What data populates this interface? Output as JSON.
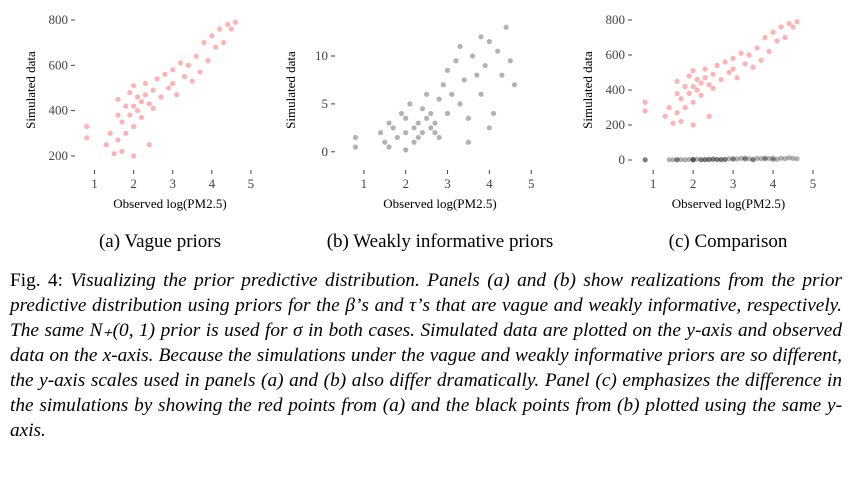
{
  "chart_data": [
    {
      "type": "scatter",
      "subcaption": "(a) Vague priors",
      "x_label": "Observed log(PM2.5)",
      "y_label": "Simulated data",
      "xlim": [
        0.5,
        5.36
      ],
      "ylim": [
        138,
        844
      ],
      "xticks": [
        1,
        2,
        3,
        4,
        5
      ],
      "yticks": [
        200,
        400,
        600,
        800
      ],
      "series": [
        {
          "color": "#ff0000",
          "x": [
            0.8,
            0.8,
            1.3,
            1.4,
            1.5,
            1.6,
            1.6,
            1.6,
            1.7,
            1.7,
            1.8,
            1.8,
            1.9,
            1.9,
            2.0,
            2.0,
            2.0,
            2.1,
            2.1,
            2.2,
            2.2,
            2.3,
            2.3,
            2.4,
            2.5,
            2.5,
            2.6,
            2.7,
            2.8,
            2.9,
            3.0,
            3.0,
            3.1,
            3.2,
            3.3,
            3.4,
            3.5,
            3.6,
            3.7,
            3.8,
            3.9,
            4.0,
            4.1,
            4.2,
            4.3,
            4.4,
            4.5,
            4.6,
            2.4,
            2.0
          ],
          "values": [
            330,
            280,
            250,
            300,
            210,
            270,
            380,
            450,
            220,
            350,
            300,
            420,
            380,
            480,
            330,
            420,
            510,
            400,
            460,
            370,
            440,
            470,
            520,
            430,
            490,
            410,
            540,
            460,
            560,
            500,
            520,
            580,
            470,
            610,
            550,
            600,
            530,
            640,
            570,
            700,
            620,
            730,
            680,
            760,
            700,
            780,
            760,
            790,
            250,
            200
          ]
        }
      ]
    },
    {
      "type": "scatter",
      "subcaption": "(b) Weakly informative priors",
      "x_label": "Observed log(PM2.5)",
      "y_label": "Simulated data",
      "xlim": [
        0.31,
        5.33
      ],
      "ylim": [
        -1.9,
        14.8
      ],
      "xticks": [
        1,
        2,
        3,
        4,
        5
      ],
      "yticks": [
        0,
        5,
        10
      ],
      "series": [
        {
          "color": "#000000",
          "x": [
            0.8,
            0.8,
            1.4,
            1.5,
            1.6,
            1.7,
            1.8,
            1.9,
            2.0,
            2.0,
            2.1,
            2.2,
            2.2,
            2.3,
            2.4,
            2.4,
            2.5,
            2.5,
            2.6,
            2.6,
            2.7,
            2.8,
            2.8,
            2.9,
            3.0,
            3.0,
            3.1,
            3.2,
            3.3,
            3.3,
            3.4,
            3.5,
            3.6,
            3.7,
            3.8,
            3.8,
            3.9,
            4.0,
            4.1,
            4.2,
            4.3,
            4.4,
            4.5,
            4.6,
            1.6,
            2.0,
            2.3,
            2.7,
            3.5,
            4.0
          ],
          "values": [
            1.5,
            0.5,
            2.0,
            1.0,
            3.0,
            2.5,
            1.5,
            4.0,
            2.0,
            3.5,
            5.0,
            2.5,
            1.0,
            3.0,
            4.5,
            2.0,
            3.5,
            6.0,
            2.5,
            4.0,
            3.0,
            5.5,
            1.5,
            7.0,
            4.0,
            8.5,
            6.0,
            9.5,
            5.0,
            11.0,
            7.5,
            3.5,
            10.0,
            8.0,
            12.0,
            6.0,
            9.0,
            11.5,
            4.0,
            10.5,
            8.0,
            13.0,
            9.5,
            7.0,
            0.5,
            0.2,
            1.5,
            2.0,
            1.0,
            2.5
          ]
        }
      ]
    },
    {
      "type": "scatter",
      "subcaption": "(c) Comparison",
      "x_label": "Observed log(PM2.5)",
      "y_label": "Simulated data",
      "xlim": [
        0.47,
        5.3
      ],
      "ylim": [
        -57,
        857
      ],
      "xticks": [
        1,
        2,
        3,
        4,
        5
      ],
      "yticks": [
        0,
        200,
        400,
        600,
        800
      ],
      "series": [
        {
          "color": "#ff0000",
          "x": [
            0.8,
            0.8,
            1.3,
            1.4,
            1.5,
            1.6,
            1.6,
            1.6,
            1.7,
            1.7,
            1.8,
            1.8,
            1.9,
            1.9,
            2.0,
            2.0,
            2.0,
            2.1,
            2.1,
            2.2,
            2.2,
            2.3,
            2.3,
            2.4,
            2.5,
            2.5,
            2.6,
            2.7,
            2.8,
            2.9,
            3.0,
            3.0,
            3.1,
            3.2,
            3.3,
            3.4,
            3.5,
            3.6,
            3.7,
            3.8,
            3.9,
            4.0,
            4.1,
            4.2,
            4.3,
            4.4,
            4.5,
            4.6,
            2.4,
            2.0
          ],
          "values": [
            330,
            280,
            250,
            300,
            210,
            270,
            380,
            450,
            220,
            350,
            300,
            420,
            380,
            480,
            330,
            420,
            510,
            400,
            460,
            370,
            440,
            470,
            520,
            430,
            490,
            410,
            540,
            460,
            560,
            500,
            520,
            580,
            470,
            610,
            550,
            600,
            530,
            640,
            570,
            700,
            620,
            730,
            680,
            760,
            700,
            780,
            760,
            790,
            250,
            200
          ]
        },
        {
          "color": "#000000",
          "x": [
            0.8,
            0.8,
            1.4,
            1.5,
            1.6,
            1.7,
            1.8,
            1.9,
            2.0,
            2.0,
            2.1,
            2.2,
            2.2,
            2.3,
            2.4,
            2.4,
            2.5,
            2.5,
            2.6,
            2.6,
            2.7,
            2.8,
            2.8,
            2.9,
            3.0,
            3.0,
            3.1,
            3.2,
            3.3,
            3.3,
            3.4,
            3.5,
            3.6,
            3.7,
            3.8,
            3.8,
            3.9,
            4.0,
            4.1,
            4.2,
            4.3,
            4.4,
            4.5,
            4.6,
            1.6,
            2.0,
            2.3,
            2.7,
            3.5,
            4.0
          ],
          "values": [
            1.5,
            0.5,
            2.0,
            1.0,
            3.0,
            2.5,
            1.5,
            4.0,
            2.0,
            3.5,
            5.0,
            2.5,
            1.0,
            3.0,
            4.5,
            2.0,
            3.5,
            6.0,
            2.5,
            4.0,
            3.0,
            5.5,
            1.5,
            7.0,
            4.0,
            8.5,
            6.0,
            9.5,
            5.0,
            11.0,
            7.5,
            3.5,
            10.0,
            8.0,
            12.0,
            6.0,
            9.0,
            11.5,
            4.0,
            10.5,
            8.0,
            13.0,
            9.5,
            7.0,
            0.5,
            0.2,
            1.5,
            2.0,
            1.0,
            2.5
          ]
        }
      ]
    }
  ],
  "caption": {
    "label": "Fig. 4:",
    "text": "Visualizing the prior predictive distribution. Panels (a) and (b) show realizations from the prior predictive distribution using priors for the β’s and τ’s that are vague and weakly informative, respectively. The same N₊(0, 1) prior is used for σ in both cases. Simulated data are plotted on the y-axis and observed data on the x-axis. Because the simulations under the vague and weakly informative priors are so different, the y-axis scales used in panels (a) and (b) also differ dramatically. Panel (c) emphasizes the difference in the simulations by showing the red points from (a) and the black points from (b) plotted using the same y-axis."
  }
}
